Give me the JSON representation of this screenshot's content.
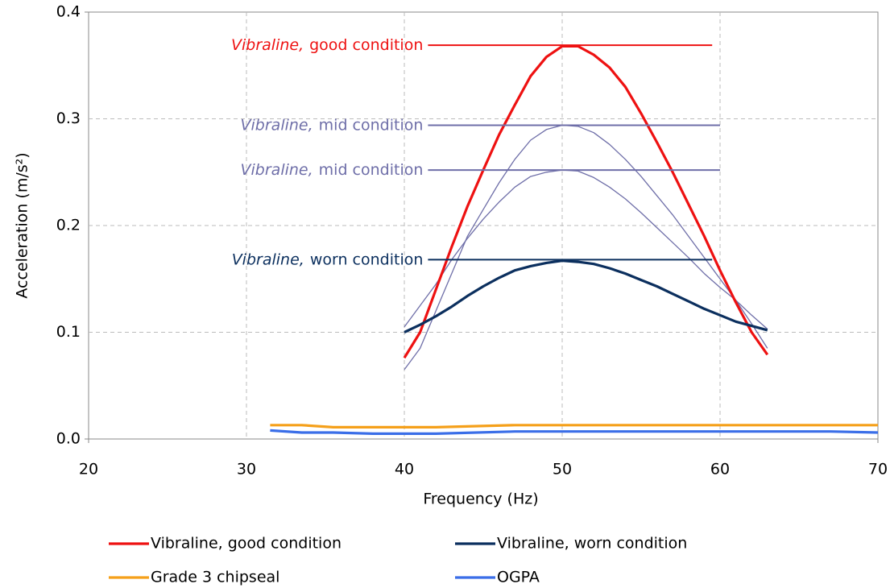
{
  "chart_data": {
    "type": "line",
    "x_label": "Frequency (Hz)",
    "y_label": "Acceleration (m/s²)",
    "xlim": [
      20,
      70
    ],
    "xticks": [
      20,
      30,
      40,
      50,
      60,
      70
    ],
    "ylim": [
      0,
      0.4
    ],
    "yticks": [
      {
        "value": 0,
        "label": "0.0"
      },
      0.1,
      0.2,
      0.3,
      0.4
    ],
    "grid": true,
    "legend": "bottom",
    "series": [
      {
        "name": "Vibraline, good condition",
        "color": "#ee1111",
        "x": [
          40,
          41,
          42,
          43,
          44,
          45,
          46,
          47,
          48,
          49,
          50,
          51,
          52,
          53,
          54,
          55,
          56,
          57,
          58,
          59,
          60,
          61,
          62,
          63
        ],
        "values": [
          0.076,
          0.1,
          0.14,
          0.18,
          0.218,
          0.252,
          0.285,
          0.313,
          0.34,
          0.358,
          0.368,
          0.368,
          0.36,
          0.348,
          0.33,
          0.305,
          0.278,
          0.25,
          0.22,
          0.19,
          0.158,
          0.128,
          0.1,
          0.079
        ]
      },
      {
        "name": "Vibraline, worn condition",
        "color": "#0b2f5e",
        "x": [
          40,
          41,
          42,
          43,
          44,
          45,
          46,
          47,
          48,
          49,
          50,
          51,
          52,
          53,
          54,
          55,
          56,
          57,
          58,
          59,
          60,
          61,
          62,
          63
        ],
        "values": [
          0.1,
          0.107,
          0.115,
          0.124,
          0.134,
          0.143,
          0.151,
          0.158,
          0.162,
          0.165,
          0.167,
          0.166,
          0.164,
          0.16,
          0.155,
          0.149,
          0.143,
          0.136,
          0.129,
          0.122,
          0.116,
          0.11,
          0.106,
          0.102
        ]
      },
      {
        "name": "Grade 3 chipseal",
        "color": "#f5a01a",
        "x": [
          31.5,
          33.5,
          35.5,
          42,
          47,
          70
        ],
        "values": [
          0.013,
          0.013,
          0.011,
          0.011,
          0.013,
          0.013
        ]
      },
      {
        "name": "OGPA",
        "color": "#3a6ee8",
        "x": [
          31.5,
          33.5,
          35.5,
          38,
          42,
          47,
          67,
          70
        ],
        "values": [
          0.008,
          0.006,
          0.006,
          0.005,
          0.005,
          0.007,
          0.007,
          0.006
        ]
      }
    ],
    "unlabeled_series": [
      {
        "color": "#6e6ea8",
        "x": [
          40,
          41,
          42,
          43,
          44,
          45,
          46,
          47,
          48,
          49,
          50,
          51,
          52,
          53,
          54,
          55,
          56,
          57,
          58,
          59,
          60,
          61,
          62,
          63
        ],
        "values": [
          0.065,
          0.085,
          0.12,
          0.155,
          0.19,
          0.215,
          0.24,
          0.262,
          0.28,
          0.29,
          0.294,
          0.293,
          0.287,
          0.276,
          0.262,
          0.246,
          0.228,
          0.21,
          0.19,
          0.17,
          0.15,
          0.13,
          0.108,
          0.085
        ]
      },
      {
        "color": "#6e6ea8",
        "x": [
          40,
          41,
          42,
          43,
          44,
          45,
          46,
          47,
          48,
          49,
          50,
          51,
          52,
          53,
          54,
          55,
          56,
          57,
          58,
          59,
          60,
          61,
          62,
          63
        ],
        "values": [
          0.105,
          0.125,
          0.145,
          0.168,
          0.188,
          0.206,
          0.222,
          0.236,
          0.246,
          0.25,
          0.252,
          0.251,
          0.245,
          0.236,
          0.225,
          0.212,
          0.198,
          0.184,
          0.17,
          0.155,
          0.142,
          0.13,
          0.116,
          0.103
        ]
      }
    ],
    "annotations": [
      {
        "emphasis": "Vibraline,",
        "text": "good condition",
        "y": 0.369,
        "x_range": [
          41.5,
          59.5
        ],
        "color": "#ee1111"
      },
      {
        "emphasis": "Vibraline,",
        "text": "mid condition",
        "y": 0.294,
        "x_range": [
          41.5,
          60
        ],
        "color": "#6e6ea8"
      },
      {
        "emphasis": "Vibraline,",
        "text": "mid condition",
        "y": 0.252,
        "x_range": [
          41.5,
          60
        ],
        "color": "#6e6ea8"
      },
      {
        "emphasis": "Vibraline,",
        "text": "worn condition",
        "y": 0.168,
        "x_range": [
          41.5,
          59.5
        ],
        "color": "#0b2f5e"
      }
    ]
  }
}
